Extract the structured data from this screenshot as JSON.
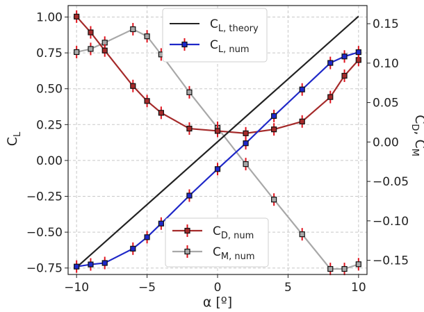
{
  "chart_data": {
    "type": "line",
    "x_axis": {
      "label": "α [º]",
      "range": [
        -10.6,
        10.6
      ],
      "ticks": [
        -10,
        -5,
        0,
        5,
        10
      ],
      "tick_labels": [
        "−10",
        "−5",
        "0",
        "5",
        "10"
      ]
    },
    "y_left": {
      "label_main": "C",
      "label_sub": "L",
      "range": [
        -0.795,
        1.08
      ],
      "ticks": [
        -0.75,
        -0.5,
        -0.25,
        0.0,
        0.25,
        0.5,
        0.75,
        1.0
      ],
      "tick_labels": [
        "−0.75",
        "−0.50",
        "−0.25",
        "0.00",
        "0.25",
        "0.50",
        "0.75",
        "1.00"
      ]
    },
    "y_right": {
      "label_main": "C",
      "label_sub": "D",
      "label_main2": "C",
      "label_sub2": "M",
      "range": [
        -0.168,
        0.173
      ],
      "ticks": [
        -0.15,
        -0.1,
        -0.05,
        0.0,
        0.05,
        0.1,
        0.15
      ],
      "tick_labels": [
        "−0.15",
        "−0.10",
        "−0.05",
        "0.00",
        "0.05",
        "0.10",
        "0.15"
      ]
    },
    "grid": true,
    "series": [
      {
        "name_main": "C",
        "name_sub": "L, theory",
        "axis": "left",
        "color": "#222222",
        "markers": false,
        "x": [
          -10,
          10
        ],
        "y": [
          -0.745,
          1.005
        ]
      },
      {
        "name_main": "C",
        "name_sub": "L, num",
        "axis": "left",
        "color": "#1f28c8",
        "markers": true,
        "x": [
          -10,
          -9,
          -8,
          -6,
          -5,
          -4,
          -2,
          0,
          2,
          4,
          6,
          8,
          9,
          10
        ],
        "y": [
          -0.74,
          -0.725,
          -0.715,
          -0.615,
          -0.535,
          -0.44,
          -0.245,
          -0.06,
          0.12,
          0.31,
          0.495,
          0.68,
          0.725,
          0.755
        ]
      },
      {
        "name_main": "C",
        "name_sub": "D, num",
        "axis": "right",
        "color": "#a52a2a",
        "markers": true,
        "x": [
          -10,
          -9,
          -8,
          -6,
          -5,
          -4,
          -2,
          0,
          2,
          4,
          6,
          8,
          9,
          10
        ],
        "y": [
          0.159,
          0.139,
          0.116,
          0.071,
          0.052,
          0.037,
          0.017,
          0.014,
          0.011,
          0.016,
          0.026,
          0.057,
          0.084,
          0.104
        ]
      },
      {
        "name_main": "C",
        "name_sub": "M, num",
        "axis": "right",
        "color": "#a8a8a8",
        "markers": true,
        "x": [
          -10,
          -9,
          -8,
          -6,
          -5,
          -4,
          -2,
          0,
          2,
          4,
          6,
          8,
          9,
          10
        ],
        "y": [
          0.114,
          0.118,
          0.126,
          0.143,
          0.134,
          0.111,
          0.063,
          0.018,
          -0.028,
          -0.073,
          -0.117,
          -0.161,
          -0.161,
          -0.155
        ]
      }
    ],
    "legends": [
      "top-center",
      "bottom-center"
    ]
  },
  "colors": {
    "theory": "#222222",
    "cl_num": "#1f28c8",
    "cd_num": "#a52a2a",
    "cm_num": "#a8a8a8",
    "errbar": "#e0141e",
    "grid": "#c8c8c8"
  }
}
